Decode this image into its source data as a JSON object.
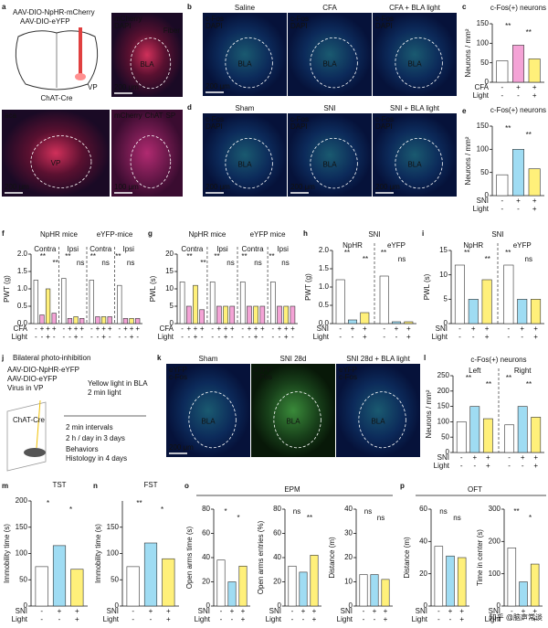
{
  "panel_letters": [
    "a",
    "b",
    "c",
    "d",
    "e",
    "f",
    "g",
    "h",
    "i",
    "j",
    "k",
    "l",
    "m",
    "n",
    "o",
    "p"
  ],
  "schematic_a": {
    "virus1": "AAV-DIO-NpHR-mCherry",
    "virus2": "AAV-DIO-eYFP",
    "mouse": "ChAT-Cre",
    "region": "VP"
  },
  "images": [
    {
      "labels": [
        {
          "text": "mCherry",
          "color": "#ff5a7a"
        },
        {
          "text": "DAPI",
          "color": "#6fa8ff"
        }
      ],
      "top_right": "Fiber",
      "center": "BLA",
      "scale": "200 μm"
    },
    {
      "labels": [
        {
          "text": "aca",
          "color": "#ffffff"
        }
      ],
      "center": "VP",
      "scale": "200 μm"
    },
    {
      "labels": [
        {
          "text": "mCherry",
          "color": "#ff5a7a"
        },
        {
          "text": "ChAT",
          "color": "#7dff7d"
        },
        {
          "text": "SP",
          "color": "#ff7dff"
        }
      ],
      "inline": true,
      "scale": "100 μm"
    },
    {
      "title": "Saline",
      "title_color": "#111111",
      "labels": [
        {
          "text": "c-Fos",
          "color": "#7dff7d"
        },
        {
          "text": "DAPI",
          "color": "#6fa8ff"
        }
      ],
      "center": "BLA",
      "scale": "200 μm"
    },
    {
      "title": "CFA",
      "title_color": "#d04fc0",
      "labels": [
        {
          "text": "c-Fos",
          "color": "#7dff7d"
        },
        {
          "text": "DAPI",
          "color": "#6fa8ff"
        }
      ],
      "center": "BLA"
    },
    {
      "title": "CFA + BLA light",
      "title_color": "#d04fc0",
      "labels": [
        {
          "text": "c-Fos",
          "color": "#7dff7d"
        },
        {
          "text": "DAPI",
          "color": "#6fa8ff"
        }
      ],
      "center": "BLA"
    },
    {
      "title": "Sham",
      "title_color": "#111111",
      "labels": [
        {
          "text": "c-Fos",
          "color": "#7dff7d"
        },
        {
          "text": "DAPI",
          "color": "#6fa8ff"
        }
      ],
      "center": "BLA",
      "scale": "200 μm"
    },
    {
      "title": "SNI",
      "title_color": "#1f8fd0",
      "labels": [
        {
          "text": "c-Fos",
          "color": "#7dff7d"
        },
        {
          "text": "DAPI",
          "color": "#6fa8ff"
        }
      ],
      "center": "BLA",
      "scale": "200 μm"
    },
    {
      "title": "SNI + BLA light",
      "title_color": "#1f8fd0",
      "labels": [
        {
          "text": "c-Fos",
          "color": "#7dff7d"
        },
        {
          "text": "DAPI",
          "color": "#6fa8ff"
        }
      ],
      "center": "BLA",
      "scale": "200 μm"
    },
    {
      "title": "Sham",
      "title_color": "#111111",
      "labels": [
        {
          "text": "eYFP",
          "color": "#7dff7d"
        },
        {
          "text": "c-Fos",
          "color": "#ff5a5a"
        }
      ],
      "center": "BLA",
      "scale": "200 μm"
    },
    {
      "title": "SNI 28d",
      "title_color": "#1f8fd0",
      "labels": [
        {
          "text": "eYFP",
          "color": "#7dff7d"
        },
        {
          "text": "c-Fos",
          "color": "#ff5a5a"
        }
      ],
      "center": "BLA"
    },
    {
      "title": "SNI 28d + BLA light",
      "title_color": "#1f8fd0",
      "labels": [
        {
          "text": "eYFP",
          "color": "#7dff7d"
        },
        {
          "text": "c-Fos",
          "color": "#ff5a5a"
        }
      ],
      "center": "BLA"
    }
  ],
  "schematic_j": {
    "title": "Bilateral photo-inhibition",
    "virus1": "AAV-DIO-NpHR-eYFP",
    "virus2": "AAV-DIO-eYFP",
    "site": "Virus in VP",
    "mouse": "ChAT-Cre",
    "light": "Yellow light in BLA",
    "on": "2 min light",
    "off": "2 min intervals",
    "schedule": "2 h / day in 3 days",
    "behaviors": "Behaviors",
    "histology": "Histology in 4 days"
  },
  "section_titles": {
    "o": "EPM",
    "p": "OFT"
  },
  "charts": {
    "c": {
      "type": "bar",
      "title": "c-Fos(+) neurons",
      "ylabel": "Neurons / mm²",
      "ylim": [
        0,
        150
      ],
      "yticks": [
        0,
        50,
        100,
        150
      ],
      "values": [
        55,
        95,
        60
      ],
      "colors": [
        "#ffffff",
        "#f4a3d6",
        "#fff07a"
      ],
      "rows": [
        {
          "name": "CFA",
          "marks": [
            "-",
            "+",
            "+"
          ]
        },
        {
          "name": "Light",
          "marks": [
            "-",
            "-",
            "+"
          ]
        }
      ],
      "sig": [
        "**",
        "**"
      ]
    },
    "e": {
      "type": "bar",
      "title": "c-Fos(+) neurons",
      "ylabel": "Neurons / mm²",
      "ylim": [
        0,
        150
      ],
      "yticks": [
        0,
        50,
        100,
        150
      ],
      "values": [
        45,
        100,
        58
      ],
      "colors": [
        "#ffffff",
        "#9fdcf3",
        "#fff07a"
      ],
      "rows": [
        {
          "name": "SNI",
          "marks": [
            "-",
            "+",
            "+"
          ]
        },
        {
          "name": "Light",
          "marks": [
            "-",
            "-",
            "+"
          ]
        }
      ],
      "sig": [
        "**",
        "**"
      ]
    },
    "f": {
      "type": "bar",
      "ylabel": "PWT (g)",
      "ylim": [
        0,
        2
      ],
      "yticks": [
        {
          "value": 0,
          "label": "0.0"
        },
        0.5,
        {
          "value": 1,
          "label": "1.0"
        },
        1.5,
        {
          "value": 2,
          "label": "2.0"
        }
      ],
      "headers": [
        "NpHR mice",
        "eYFP-mice"
      ],
      "groups": [
        {
          "label": "Contra",
          "values": [
            1.25,
            0.25,
            1.0,
            0.3
          ]
        },
        {
          "label": "Ipsi",
          "values": [
            1.3,
            0.15,
            0.2,
            0.15
          ]
        },
        {
          "label": "Contra",
          "values": [
            1.25,
            0.2,
            0.2,
            0.2
          ]
        },
        {
          "label": "Ipsi",
          "values": [
            1.1,
            0.15,
            0.15,
            0.15
          ]
        }
      ],
      "colors": [
        "#ffffff",
        "#f4a3d6",
        "#fff07a",
        "#f4a3d6"
      ],
      "rows": [
        {
          "name": "CFA",
          "marks": [
            "-",
            "+",
            "+",
            "+",
            "-",
            "+",
            "+",
            "+",
            "-",
            "+",
            "+",
            "+",
            "-",
            "+",
            "+",
            "+"
          ]
        },
        {
          "name": "Light",
          "marks": [
            "-",
            "-",
            "+",
            "-",
            "-",
            "-",
            "+",
            "-",
            "-",
            "-",
            "+",
            "-",
            "-",
            "-",
            "+",
            "-"
          ]
        }
      ],
      "sig": [
        "**",
        "**",
        "**",
        "ns",
        "**",
        "ns",
        "**",
        "ns"
      ]
    },
    "g": {
      "type": "bar",
      "ylabel": "PWL (s)",
      "ylim": [
        0,
        20
      ],
      "yticks": [
        0,
        5,
        10,
        15,
        20
      ],
      "headers": [
        "NpHR mice",
        "eYFP mice"
      ],
      "groups": [
        {
          "label": "Contra",
          "values": [
            12,
            5,
            11,
            4
          ]
        },
        {
          "label": "Ipsi",
          "values": [
            12,
            5,
            5,
            5
          ]
        },
        {
          "label": "Contra",
          "values": [
            12,
            5,
            5,
            5
          ]
        },
        {
          "label": "Ipsi",
          "values": [
            12,
            5,
            5,
            5
          ]
        }
      ],
      "colors": [
        "#ffffff",
        "#f4a3d6",
        "#fff07a",
        "#f4a3d6"
      ],
      "rows": [
        {
          "name": "CFA",
          "marks": [
            "-",
            "+",
            "+",
            "+",
            "-",
            "+",
            "+",
            "+",
            "-",
            "+",
            "+",
            "+",
            "-",
            "+",
            "+",
            "+"
          ]
        },
        {
          "name": "Light",
          "marks": [
            "-",
            "-",
            "+",
            "-",
            "-",
            "-",
            "+",
            "-",
            "-",
            "-",
            "+",
            "-",
            "-",
            "-",
            "+",
            "-"
          ]
        }
      ],
      "sig": [
        "**",
        "**",
        "**",
        "ns",
        "**",
        "ns",
        "**",
        "ns"
      ]
    },
    "h": {
      "type": "bar",
      "title": "SNI",
      "ylabel": "PWT (g)",
      "ylim": [
        0,
        2
      ],
      "yticks": [
        {
          "value": 0,
          "label": "0.0"
        },
        0.5,
        {
          "value": 1,
          "label": "1.0"
        },
        1.5,
        {
          "value": 2,
          "label": "2.0"
        }
      ],
      "groups": [
        {
          "label": "NpHR",
          "values": [
            1.2,
            0.1,
            0.3
          ]
        },
        {
          "label": "eYFP",
          "values": [
            1.3,
            0.05,
            0.05
          ]
        }
      ],
      "colors": [
        "#ffffff",
        "#9fdcf3",
        "#fff07a"
      ],
      "rows": [
        {
          "name": "SNI",
          "marks": [
            "-",
            "+",
            "+",
            "-",
            "+",
            "+"
          ]
        },
        {
          "name": "Light",
          "marks": [
            "-",
            "-",
            "+",
            "-",
            "-",
            "+"
          ]
        }
      ],
      "sig": [
        "**",
        "**",
        "**",
        "ns"
      ]
    },
    "i": {
      "type": "bar",
      "title": "SNI",
      "ylabel": "PWL (s)",
      "ylim": [
        0,
        15
      ],
      "yticks": [
        0,
        5,
        10,
        15
      ],
      "groups": [
        {
          "label": "NpHR",
          "values": [
            12,
            5,
            9
          ]
        },
        {
          "label": "eYFP",
          "values": [
            12,
            5,
            5
          ]
        }
      ],
      "colors": [
        "#ffffff",
        "#9fdcf3",
        "#fff07a"
      ],
      "rows": [
        {
          "name": "SNI",
          "marks": [
            "-",
            "+",
            "+",
            "-",
            "+",
            "+"
          ]
        },
        {
          "name": "Light",
          "marks": [
            "-",
            "-",
            "+",
            "-",
            "-",
            "+"
          ]
        }
      ],
      "sig": [
        "**",
        "**",
        "**",
        "ns"
      ]
    },
    "l": {
      "type": "bar",
      "title": "c-Fos(+) neurons",
      "ylabel": "Neurons / mm²",
      "ylim": [
        0,
        250
      ],
      "yticks": [
        0,
        50,
        100,
        150,
        200,
        250
      ],
      "groups": [
        {
          "label": "Left",
          "values": [
            100,
            150,
            110
          ]
        },
        {
          "label": "Right",
          "values": [
            90,
            150,
            115
          ]
        }
      ],
      "colors": [
        "#ffffff",
        "#9fdcf3",
        "#fff07a"
      ],
      "rows": [
        {
          "name": "SNI",
          "marks": [
            "-",
            "+",
            "+",
            "-",
            "+",
            "+"
          ]
        },
        {
          "name": "Light",
          "marks": [
            "-",
            "-",
            "+",
            "-",
            "-",
            "+"
          ]
        }
      ],
      "sig": [
        "**",
        "**",
        "**",
        "**"
      ]
    },
    "m": {
      "type": "bar",
      "title": "TST",
      "ylabel": "Immobility time (s)",
      "ylim": [
        0,
        200
      ],
      "yticks": [
        0,
        50,
        100,
        150,
        200
      ],
      "values": [
        75,
        115,
        70
      ],
      "colors": [
        "#ffffff",
        "#9fdcf3",
        "#fff07a"
      ],
      "rows": [
        {
          "name": "SNI",
          "marks": [
            "-",
            "+",
            "+"
          ]
        },
        {
          "name": "Light",
          "marks": [
            "-",
            "-",
            "+"
          ]
        }
      ],
      "sig": [
        "*",
        "*"
      ]
    },
    "n": {
      "type": "bar",
      "title": "FST",
      "ylabel": "Immobility time (s)",
      "ylim": [
        0,
        200
      ],
      "yticks": [
        0,
        50,
        100,
        150
      ],
      "values": [
        75,
        120,
        90
      ],
      "colors": [
        "#ffffff",
        "#9fdcf3",
        "#fff07a"
      ],
      "rows": [
        {
          "name": "SNI",
          "marks": [
            "-",
            "+",
            "+"
          ]
        },
        {
          "name": "Light",
          "marks": [
            "-",
            "-",
            "+"
          ]
        }
      ],
      "sig": [
        "**",
        "*"
      ]
    },
    "o1": {
      "type": "bar",
      "ylabel": "Open arms time (s)",
      "ylim": [
        0,
        80
      ],
      "yticks": [
        0,
        20,
        40,
        60,
        80
      ],
      "values": [
        38,
        20,
        33
      ],
      "colors": [
        "#ffffff",
        "#9fdcf3",
        "#fff07a"
      ],
      "rows": [
        {
          "name": "SNI",
          "marks": [
            "-",
            "+",
            "+"
          ]
        },
        {
          "name": "Light",
          "marks": [
            "-",
            "-",
            "+"
          ]
        }
      ],
      "sig": [
        "*",
        "*"
      ]
    },
    "o2": {
      "type": "bar",
      "ylabel": "Open arms entries (%)",
      "ylim": [
        0,
        80
      ],
      "yticks": [
        0,
        20,
        40,
        60,
        80
      ],
      "values": [
        33,
        28,
        42
      ],
      "colors": [
        "#ffffff",
        "#9fdcf3",
        "#fff07a"
      ],
      "rows": [
        {
          "name": "SNI",
          "marks": [
            "-",
            "+",
            "+"
          ]
        },
        {
          "name": "Light",
          "marks": [
            "-",
            "-",
            "+"
          ]
        }
      ],
      "sig": [
        "ns",
        "**"
      ]
    },
    "o3": {
      "type": "bar",
      "ylabel": "Distance (m)",
      "ylim": [
        0,
        40
      ],
      "yticks": [
        0,
        10,
        20,
        30,
        40
      ],
      "values": [
        13,
        13,
        11
      ],
      "colors": [
        "#ffffff",
        "#9fdcf3",
        "#fff07a"
      ],
      "rows": [
        {
          "name": "SNI",
          "marks": [
            "-",
            "+",
            "+"
          ]
        },
        {
          "name": "Light",
          "marks": [
            "-",
            "-",
            "+"
          ]
        }
      ],
      "sig": [
        "ns",
        "ns"
      ]
    },
    "p1": {
      "type": "bar",
      "ylabel": "Distance (m)",
      "ylim": [
        0,
        60
      ],
      "yticks": [
        0,
        20,
        40,
        60
      ],
      "values": [
        37,
        31,
        30
      ],
      "colors": [
        "#ffffff",
        "#9fdcf3",
        "#fff07a"
      ],
      "rows": [
        {
          "name": "SNI",
          "marks": [
            "-",
            "+",
            "+"
          ]
        },
        {
          "name": "Light",
          "marks": [
            "-",
            "-",
            "+"
          ]
        }
      ],
      "sig": [
        "ns",
        "ns"
      ]
    },
    "p2": {
      "type": "bar",
      "ylabel": "Time in center (s)",
      "ylim": [
        0,
        300
      ],
      "yticks": [
        0,
        100,
        200,
        300
      ],
      "values": [
        180,
        75,
        130
      ],
      "colors": [
        "#ffffff",
        "#9fdcf3",
        "#fff07a"
      ],
      "rows": [
        {
          "name": "SNI",
          "marks": [
            "-",
            "+",
            "+"
          ]
        },
        {
          "name": "Light",
          "marks": [
            "-",
            "-",
            "+"
          ]
        }
      ],
      "sig": [
        "**",
        "*"
      ]
    }
  },
  "watermark": "知乎 @脑声常谈"
}
